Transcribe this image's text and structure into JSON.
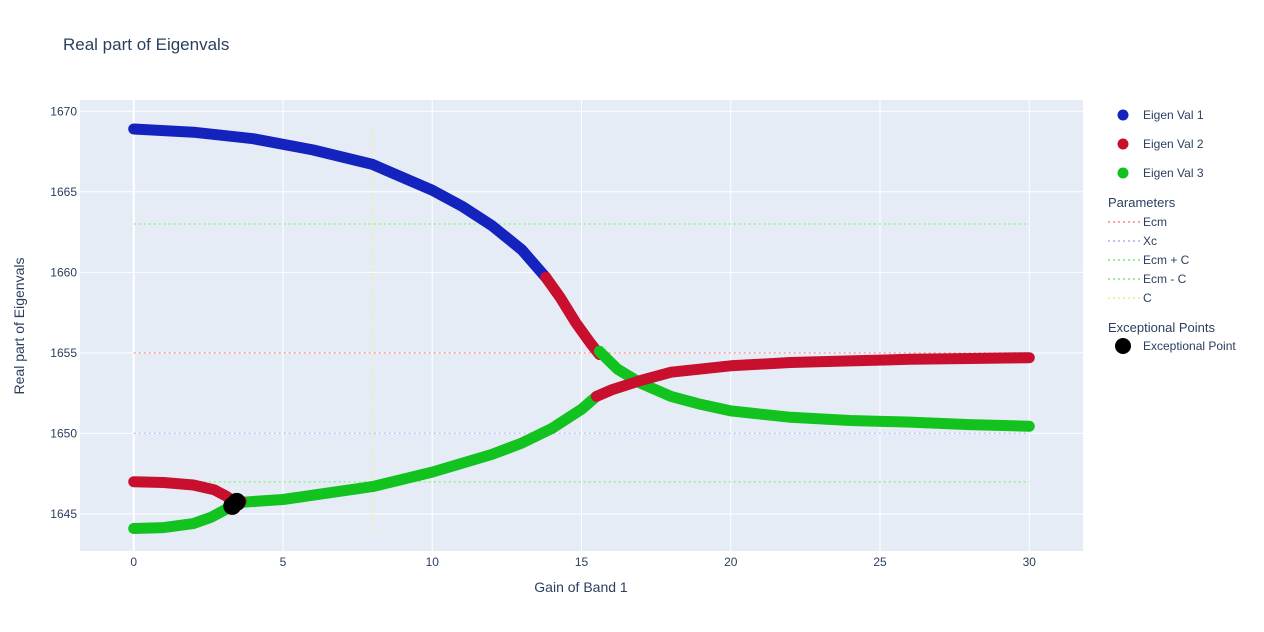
{
  "chart_data": {
    "type": "line",
    "title": "Real part of Eigenvals",
    "xlabel": "Gain of Band 1",
    "ylabel": "Real part of Eigenvals",
    "xlim": [
      -1.8,
      31.8
    ],
    "ylim": [
      1642.7,
      1670.7
    ],
    "x_ticks": [
      0,
      5,
      10,
      15,
      20,
      25,
      30
    ],
    "y_ticks": [
      1645,
      1650,
      1655,
      1660,
      1665,
      1670
    ],
    "grid": true,
    "legend_position": "right",
    "colors": {
      "plot_bg": "#e5ecf6",
      "grid": "#ffffff",
      "blue": "#1422be",
      "red": "#c8102e",
      "green": "#12c21f",
      "ep": "#000000"
    },
    "series": [
      {
        "name": "Eigen Val 1",
        "legend_color": "#1422be",
        "segments": [
          {
            "color": "#1422be",
            "points": [
              [
                0,
                1668.9
              ],
              [
                2,
                1668.7
              ],
              [
                4,
                1668.3
              ],
              [
                6,
                1667.6
              ],
              [
                8,
                1666.7
              ],
              [
                10,
                1665.1
              ],
              [
                11,
                1664.1
              ],
              [
                12,
                1662.9
              ],
              [
                13,
                1661.4
              ],
              [
                13.8,
                1659.7
              ]
            ]
          },
          {
            "color": "#c8102e",
            "points": [
              [
                13.8,
                1659.7
              ],
              [
                14.3,
                1658.4
              ],
              [
                14.8,
                1656.9
              ],
              [
                15.3,
                1655.6
              ],
              [
                15.6,
                1654.9
              ]
            ]
          },
          {
            "color": "#12c21f",
            "points": [
              [
                15.6,
                1655.1
              ],
              [
                16.2,
                1654.0
              ],
              [
                17,
                1653.1
              ],
              [
                18,
                1652.3
              ],
              [
                19,
                1651.8
              ],
              [
                20,
                1651.4
              ],
              [
                22,
                1651.0
              ],
              [
                24,
                1650.8
              ],
              [
                26,
                1650.7
              ],
              [
                28,
                1650.55
              ],
              [
                30,
                1650.45
              ]
            ]
          }
        ]
      },
      {
        "name": "Eigen Val 2",
        "legend_color": "#c8102e",
        "segments": [
          {
            "color": "#c8102e",
            "points": [
              [
                0,
                1647.0
              ],
              [
                1,
                1646.95
              ],
              [
                2,
                1646.8
              ],
              [
                2.7,
                1646.5
              ],
              [
                3.1,
                1646.1
              ],
              [
                3.4,
                1645.7
              ]
            ]
          },
          {
            "color": "#12c21f",
            "points": [
              [
                3.4,
                1645.7
              ],
              [
                5,
                1645.9
              ],
              [
                8,
                1646.7
              ],
              [
                10,
                1647.6
              ],
              [
                12,
                1648.7
              ],
              [
                13,
                1649.4
              ],
              [
                14,
                1650.3
              ],
              [
                15,
                1651.5
              ],
              [
                15.5,
                1652.3
              ]
            ]
          },
          {
            "color": "#c8102e",
            "points": [
              [
                15.5,
                1652.3
              ],
              [
                16,
                1652.7
              ],
              [
                17,
                1653.3
              ],
              [
                18,
                1653.8
              ],
              [
                20,
                1654.2
              ],
              [
                22,
                1654.4
              ],
              [
                24,
                1654.5
              ],
              [
                26,
                1654.6
              ],
              [
                28,
                1654.65
              ],
              [
                30,
                1654.7
              ]
            ]
          }
        ]
      },
      {
        "name": "Eigen Val 3",
        "legend_color": "#12c21f",
        "segments": [
          {
            "color": "#12c21f",
            "points": [
              [
                0,
                1644.1
              ],
              [
                1,
                1644.15
              ],
              [
                2,
                1644.4
              ],
              [
                2.6,
                1644.8
              ],
              [
                3.1,
                1645.3
              ],
              [
                3.4,
                1645.7
              ]
            ]
          },
          {
            "color": "#c8102e",
            "points": [
              [
                3.4,
                1645.7
              ],
              [
                3.6,
                1645.8
              ]
            ]
          }
        ]
      }
    ],
    "parameters_title": "Parameters",
    "parameters": [
      {
        "name": "Ecm",
        "color": "#f5a3a3",
        "type": "h",
        "value": 1655,
        "range": [
          0,
          30
        ]
      },
      {
        "name": "Xc",
        "color": "#c2c2f5",
        "type": "h",
        "value": 1650,
        "range": [
          0,
          30
        ]
      },
      {
        "name": "Ecm + C",
        "color": "#8ef58e",
        "type": "h",
        "value": 1663,
        "range": [
          0,
          30
        ]
      },
      {
        "name": "Ecm - C",
        "color": "#8ef58e",
        "type": "h",
        "value": 1647,
        "range": [
          0,
          30
        ]
      },
      {
        "name": "C",
        "color": "#f0f0a0",
        "type": "v",
        "value": 8,
        "range": [
          1644,
          1669
        ]
      }
    ],
    "ep_title": "Exceptional Points",
    "exceptional_points": {
      "name": "Exceptional Point",
      "points": [
        [
          3.3,
          1645.5
        ],
        [
          3.45,
          1645.75
        ]
      ]
    }
  }
}
